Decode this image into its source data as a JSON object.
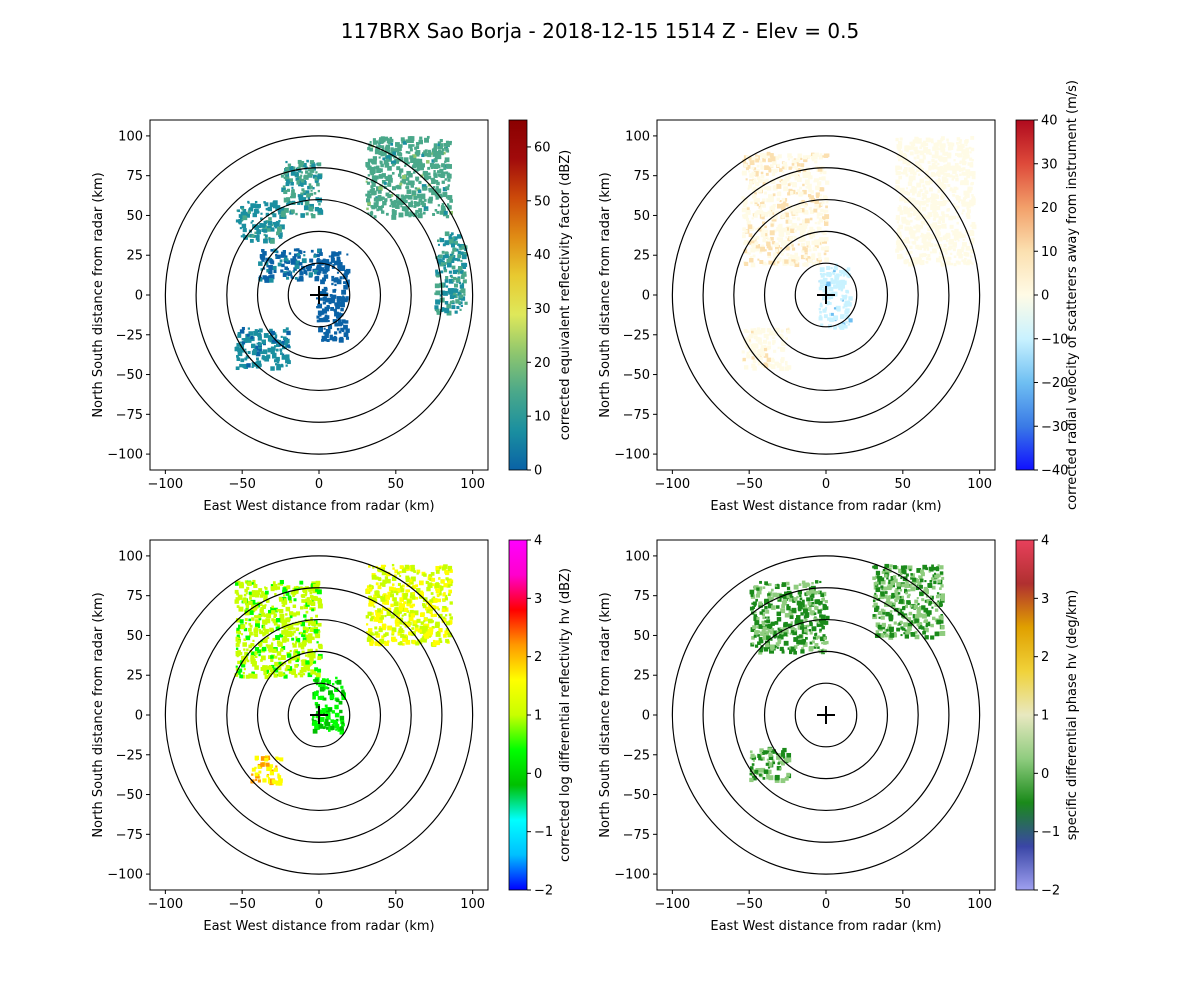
{
  "title": "117BRX Sao Borja - 2018-12-15 1514 Z -  Elev = 0.5",
  "colors": {
    "ring": "#000000",
    "axis": "#000000",
    "background": "#ffffff"
  },
  "chart_data": [
    {
      "type": "heatmap",
      "name": "reflectivity",
      "xlabel": "East West distance from radar (km)",
      "ylabel": "North South distance from radar (km)",
      "xlim": [
        -110,
        110
      ],
      "ylim": [
        -110,
        110
      ],
      "xticks": [
        -100,
        -50,
        0,
        50,
        100
      ],
      "yticks": [
        -100,
        -75,
        -50,
        -25,
        0,
        25,
        50,
        75,
        100
      ],
      "range_rings_km": [
        20,
        40,
        60,
        80,
        100
      ],
      "colorbar": {
        "label": "corrected equivalent reflectivity factor (dBZ)",
        "min": 0,
        "max": 65,
        "ticks": [
          0,
          10,
          20,
          30,
          40,
          50,
          60
        ],
        "colormap": [
          "#0a62a6",
          "#1a8fa0",
          "#4aa88a",
          "#8ec66e",
          "#dfe85a",
          "#e8c930",
          "#e08b14",
          "#cc4a0a",
          "#a10b0b",
          "#8a0000"
        ]
      },
      "echoes": [
        {
          "x": [
            -2,
            18
          ],
          "y": [
            -28,
            28
          ],
          "value": 3
        },
        {
          "x": [
            -40,
            0
          ],
          "y": [
            10,
            30
          ],
          "value": 5
        },
        {
          "x": [
            -55,
            -25
          ],
          "y": [
            35,
            60
          ],
          "value": 12
        },
        {
          "x": [
            -25,
            0
          ],
          "y": [
            50,
            85
          ],
          "value": 15
        },
        {
          "x": [
            30,
            85
          ],
          "y": [
            50,
            100
          ],
          "value": 18
        },
        {
          "x": [
            -55,
            -20
          ],
          "y": [
            -45,
            -20
          ],
          "value": 10
        },
        {
          "x": [
            75,
            95
          ],
          "y": [
            -10,
            40
          ],
          "value": 14
        }
      ]
    },
    {
      "type": "heatmap",
      "name": "velocity",
      "xlabel": "East West distance from radar (km)",
      "ylabel": "North South distance from radar (km)",
      "xlim": [
        -110,
        110
      ],
      "ylim": [
        -110,
        110
      ],
      "xticks": [
        -100,
        -50,
        0,
        50,
        100
      ],
      "yticks": [
        -100,
        -75,
        -50,
        -25,
        0,
        25,
        50,
        75,
        100
      ],
      "range_rings_km": [
        20,
        40,
        60,
        80,
        100
      ],
      "colorbar": {
        "label": "corrected radial velocity of scatterers away from instrument (m/s)",
        "min": -40,
        "max": 40,
        "ticks": [
          -40,
          -30,
          -20,
          -10,
          0,
          10,
          20,
          30,
          40
        ],
        "colormap": [
          "#1010ff",
          "#3a7ae6",
          "#6fbff2",
          "#c9f2ff",
          "#fffbe6",
          "#fbe0b0",
          "#f2a06a",
          "#de4a3a",
          "#b00a1e"
        ]
      },
      "echoes": [
        {
          "x": [
            -55,
            0
          ],
          "y": [
            20,
            90
          ],
          "value": 8
        },
        {
          "x": [
            45,
            95
          ],
          "y": [
            20,
            100
          ],
          "value": 5
        },
        {
          "x": [
            -55,
            -25
          ],
          "y": [
            -45,
            -20
          ],
          "value": 6
        },
        {
          "x": [
            -5,
            15
          ],
          "y": [
            -20,
            20
          ],
          "value": -6
        }
      ]
    },
    {
      "type": "heatmap",
      "name": "differential_reflectivity",
      "xlabel": "East West distance from radar (km)",
      "ylabel": "North South distance from radar (km)",
      "xlim": [
        -110,
        110
      ],
      "ylim": [
        -110,
        110
      ],
      "xticks": [
        -100,
        -50,
        0,
        50,
        100
      ],
      "yticks": [
        -100,
        -75,
        -50,
        -25,
        0,
        25,
        50,
        75,
        100
      ],
      "range_rings_km": [
        20,
        40,
        60,
        80,
        100
      ],
      "colorbar": {
        "label": "corrected log differential reflectivity hv (dBZ)",
        "min": -2,
        "max": 4,
        "ticks": [
          -2,
          -1,
          0,
          1,
          2,
          3,
          4
        ],
        "colormap": [
          "#0000ff",
          "#00bfff",
          "#00ffff",
          "#00c000",
          "#00ff00",
          "#c8ff00",
          "#ffff00",
          "#ff9900",
          "#ff0000",
          "#ff00cc",
          "#ff00ff"
        ]
      },
      "echoes": [
        {
          "x": [
            -55,
            0
          ],
          "y": [
            25,
            85
          ],
          "value": 1.2
        },
        {
          "x": [
            30,
            85
          ],
          "y": [
            45,
            95
          ],
          "value": 1.6
        },
        {
          "x": [
            -45,
            -25
          ],
          "y": [
            -42,
            -25
          ],
          "value": 2.2
        },
        {
          "x": [
            -5,
            15
          ],
          "y": [
            -10,
            25
          ],
          "value": 0.5
        }
      ]
    },
    {
      "type": "heatmap",
      "name": "specific_differential_phase",
      "xlabel": "East West distance from radar (km)",
      "ylabel": "North South distance from radar (km)",
      "xlim": [
        -110,
        110
      ],
      "ylim": [
        -110,
        110
      ],
      "xticks": [
        -100,
        -50,
        0,
        50,
        100
      ],
      "yticks": [
        -100,
        -75,
        -50,
        -25,
        0,
        25,
        50,
        75,
        100
      ],
      "range_rings_km": [
        20,
        40,
        60,
        80,
        100
      ],
      "colorbar": {
        "label": "specific differential phase hv (deg/km)",
        "min": -2,
        "max": 4,
        "ticks": [
          -2,
          -1,
          0,
          1,
          2,
          3,
          4
        ],
        "colormap": [
          "#9fa0f0",
          "#3a46a6",
          "#1a8a1a",
          "#8fcc7f",
          "#e8e8c0",
          "#f0d23a",
          "#e0a000",
          "#b03030",
          "#e8405c"
        ]
      },
      "echoes": [
        {
          "x": [
            -50,
            0
          ],
          "y": [
            40,
            85
          ],
          "value": 0.2
        },
        {
          "x": [
            30,
            75
          ],
          "y": [
            50,
            95
          ],
          "value": 0.3
        },
        {
          "x": [
            -50,
            -25
          ],
          "y": [
            -40,
            -20
          ],
          "value": 0.2
        }
      ]
    }
  ]
}
